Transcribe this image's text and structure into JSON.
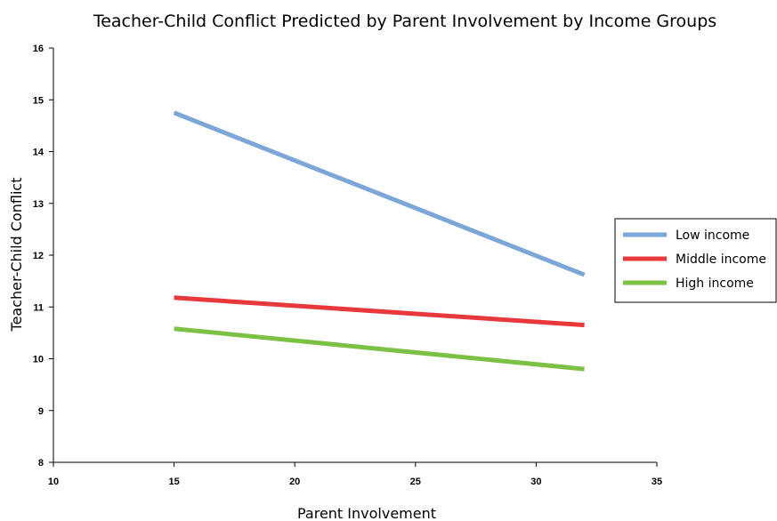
{
  "chart_data": {
    "type": "line",
    "title": "Teacher-Child Conflict Predicted by Parent Involvement by Income Groups",
    "xlabel": "Parent Involvement",
    "ylabel": "Teacher-Child Conflict",
    "xlim": [
      10,
      35
    ],
    "ylim": [
      8,
      16
    ],
    "x_ticks": [
      10,
      15,
      20,
      25,
      30,
      35
    ],
    "y_ticks": [
      8,
      9,
      10,
      11,
      12,
      13,
      14,
      15,
      16
    ],
    "grid": false,
    "legend_position": "right",
    "series": [
      {
        "name": "Low income",
        "color": "#7aa6d8",
        "x": [
          15,
          32
        ],
        "y": [
          14.75,
          11.62
        ]
      },
      {
        "name": "Middle income",
        "color": "#e8383b",
        "x": [
          15,
          32
        ],
        "y": [
          11.18,
          10.65
        ]
      },
      {
        "name": "High income",
        "color": "#7bc143",
        "x": [
          15,
          32
        ],
        "y": [
          10.58,
          9.8
        ]
      }
    ]
  }
}
